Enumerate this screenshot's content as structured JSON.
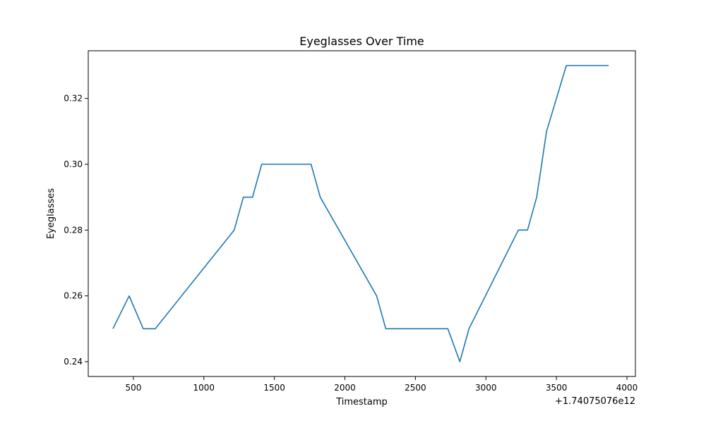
{
  "chart_data": {
    "type": "line",
    "title": "Eyeglasses Over Time",
    "xlabel": "Timestamp",
    "ylabel": "Eyeglasses",
    "x_offset_label": "+1.74075076e12",
    "xlim": [
      180,
      4060
    ],
    "ylim": [
      0.2355,
      0.3345
    ],
    "x_ticks": [
      500,
      1000,
      1500,
      2000,
      2500,
      3000,
      3500,
      4000
    ],
    "x_tick_labels": [
      "500",
      "1000",
      "1500",
      "2000",
      "2500",
      "3000",
      "3500",
      "4000"
    ],
    "y_ticks": [
      0.24,
      0.26,
      0.28,
      0.3,
      0.32
    ],
    "y_tick_labels": [
      "0.24",
      "0.26",
      "0.28",
      "0.30",
      "0.32"
    ],
    "grid": false,
    "series": [
      {
        "color": "#1f77b4",
        "x": [
          355,
          470,
          570,
          655,
          1215,
          1280,
          1345,
          1410,
          1760,
          1825,
          2225,
          2290,
          2730,
          2815,
          2880,
          3230,
          3295,
          3360,
          3430,
          3570,
          3870
        ],
        "y": [
          0.25,
          0.26,
          0.25,
          0.25,
          0.28,
          0.29,
          0.29,
          0.3,
          0.3,
          0.29,
          0.26,
          0.25,
          0.25,
          0.24,
          0.25,
          0.28,
          0.28,
          0.29,
          0.31,
          0.33,
          0.33
        ]
      }
    ]
  }
}
